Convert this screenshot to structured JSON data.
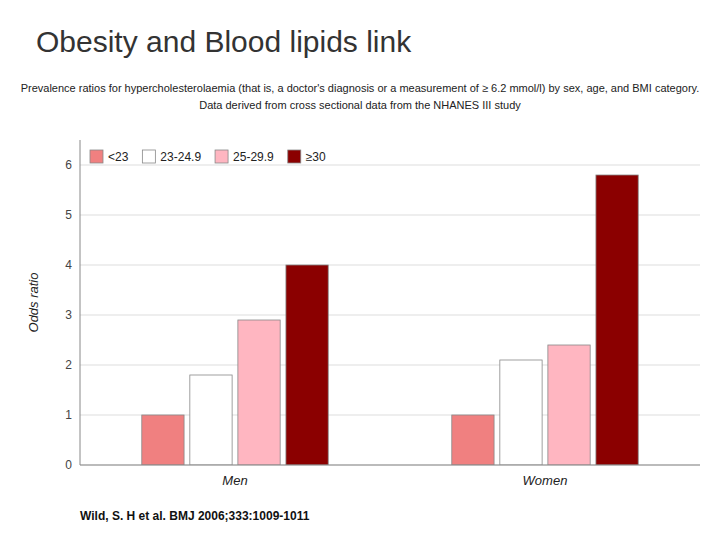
{
  "chart_data": {
    "type": "bar",
    "title": "Obesity and Blood lipids link",
    "subtitle": [
      "Prevalence ratios for hypercholesterolaemia (that is, a doctor's diagnosis or a measurement of ≥ 6.2 mmol/l) by sex, age, and BMI category.",
      "Data derived from cross sectional data from the NHANES III study"
    ],
    "annotations": [
      "Wild, S. H et al. BMJ 2006;333:1009-1011"
    ],
    "categories": [
      "Men",
      "Women"
    ],
    "series": [
      {
        "name": "<23",
        "color": "#F08080",
        "values": [
          1.0,
          1.0
        ]
      },
      {
        "name": "23-24.9",
        "color": "#FFFFFF",
        "values": [
          1.8,
          2.1
        ]
      },
      {
        "name": "25-29.9",
        "color": "#FFB6C1",
        "values": [
          2.9,
          2.4
        ]
      },
      {
        "name": "≥30",
        "color": "#8B0000",
        "values": [
          4.0,
          5.8
        ]
      }
    ],
    "ylabel": "Odds ratio",
    "ylim": [
      0,
      6.5
    ],
    "yticks": [
      0,
      1,
      2,
      3,
      4,
      5,
      6
    ],
    "grid": true,
    "legend": "upper left"
  }
}
